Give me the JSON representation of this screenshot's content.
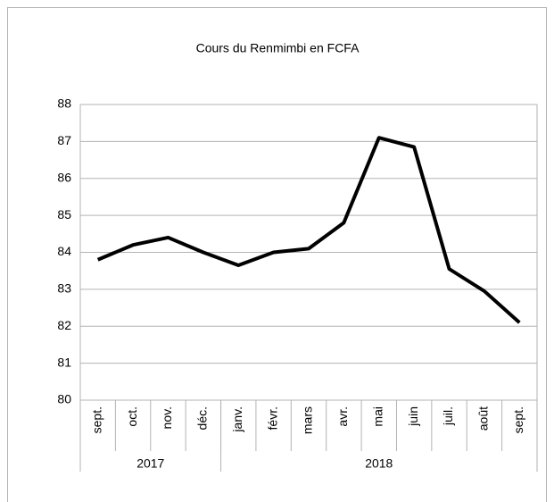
{
  "chart_data": {
    "type": "line",
    "title": "Cours du Renmimbi en FCFA",
    "categories": [
      "sept.",
      "oct.",
      "nov.",
      "déc.",
      "janv.",
      "févr.",
      "mars",
      "avr.",
      "mai",
      "juin",
      "juil.",
      "août",
      "sept."
    ],
    "groups": [
      {
        "label": "2017",
        "count": 4
      },
      {
        "label": "2018",
        "count": 9
      }
    ],
    "series": [
      {
        "name": "Cours",
        "color": "#000000",
        "values": [
          83.8,
          84.2,
          84.4,
          84.0,
          83.65,
          84.0,
          84.1,
          84.8,
          87.1,
          86.85,
          83.55,
          82.95,
          82.1
        ]
      }
    ],
    "ylim": [
      80,
      88
    ],
    "yticks": [
      80,
      81,
      82,
      83,
      84,
      85,
      86,
      87,
      88
    ],
    "grid": true,
    "legend": false
  }
}
